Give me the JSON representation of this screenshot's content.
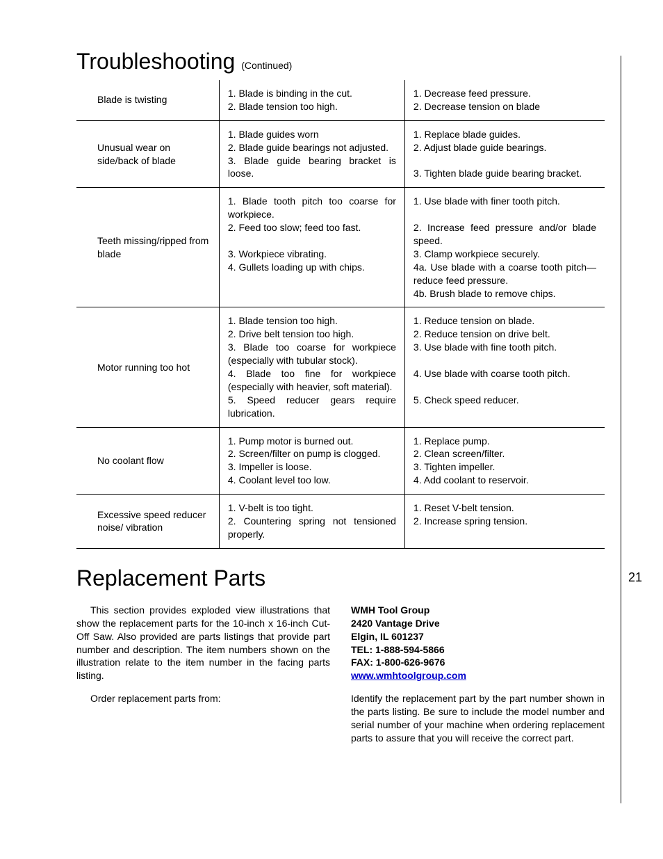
{
  "page_number": "21",
  "troubleshooting": {
    "title": "Troubleshooting",
    "continued": "(Continued)",
    "rows": [
      {
        "problem": "Blade is twisting",
        "cause": "1. Blade is binding in the cut.\n2. Blade tension too high.",
        "remedy": "1. Decrease feed pressure.\n2. Decrease tension on blade"
      },
      {
        "problem": "Unusual wear on side/back of blade",
        "cause": "1. Blade guides worn\n2. Blade guide bearings not adjusted.\n3. Blade guide bearing bracket is loose.",
        "remedy": "1. Replace blade guides.\n2. Adjust blade guide bearings.\n\n3. Tighten blade guide bearing bracket."
      },
      {
        "problem": "Teeth missing/ripped from blade",
        "cause": "1. Blade tooth pitch too coarse for workpiece.\n2. Feed too slow; feed too fast.\n\n3. Workpiece vibrating.\n4. Gullets loading up with chips.",
        "remedy": "1. Use blade with finer tooth pitch.\n\n2. Increase feed pressure and/or blade speed.\n3. Clamp workpiece securely.\n4a.    Use blade with a coarse tooth pitch—reduce feed pressure.\n4b.    Brush blade to remove chips."
      },
      {
        "problem": "Motor running too hot",
        "cause": "1. Blade tension too high.\n2. Drive belt tension too high.\n3. Blade too coarse for workpiece (especially with tubular stock).\n4. Blade too fine for workpiece (especially with heavier, soft material).\n5. Speed reducer gears require lubrication.",
        "remedy": "1. Reduce tension on blade.\n2. Reduce tension on drive belt.\n3. Use blade with fine tooth pitch.\n\n4. Use blade with coarse tooth pitch.\n\n5. Check      speed      reducer."
      },
      {
        "problem": "No coolant flow",
        "cause": "1. Pump motor is burned out.\n2. Screen/filter on pump is clogged.\n3. Impeller is loose.\n4. Coolant level too low.",
        "remedy": "1. Replace pump.\n2. Clean screen/filter.\n3. Tighten impeller.\n4. Add coolant to reservoir."
      },
      {
        "problem": "Excessive speed reducer noise/ vibration",
        "cause": "1. V-belt is too tight.\n2. Countering spring not tensioned properly.",
        "remedy": "1. Reset V-belt tension.\n2. Increase spring tension."
      }
    ]
  },
  "replacement": {
    "title": "Replacement Parts",
    "para1": "This section provides exploded view illustrations that show the replacement parts for the 10-inch  x 16-inch Cut-Off Saw.  Also provided are parts listings that provide part number and description.  The item numbers shown on the illustration relate to the item number in the facing parts listing.",
    "para2": "Order replacement parts from:",
    "address": {
      "name": "WMH Tool Group",
      "street": "2420 Vantage Drive",
      "city": "Elgin, IL 601237",
      "tel": "TEL: 1-888-594-5866",
      "fax": "FAX: 1-800-626-9676",
      "url": "www.wmhtoolgroup.com"
    },
    "para3": "Identify the replacement part by the part number shown in the parts listing.  Be sure to include the model number and serial number of your machine when ordering replacement parts to assure that you will receive the correct part."
  }
}
